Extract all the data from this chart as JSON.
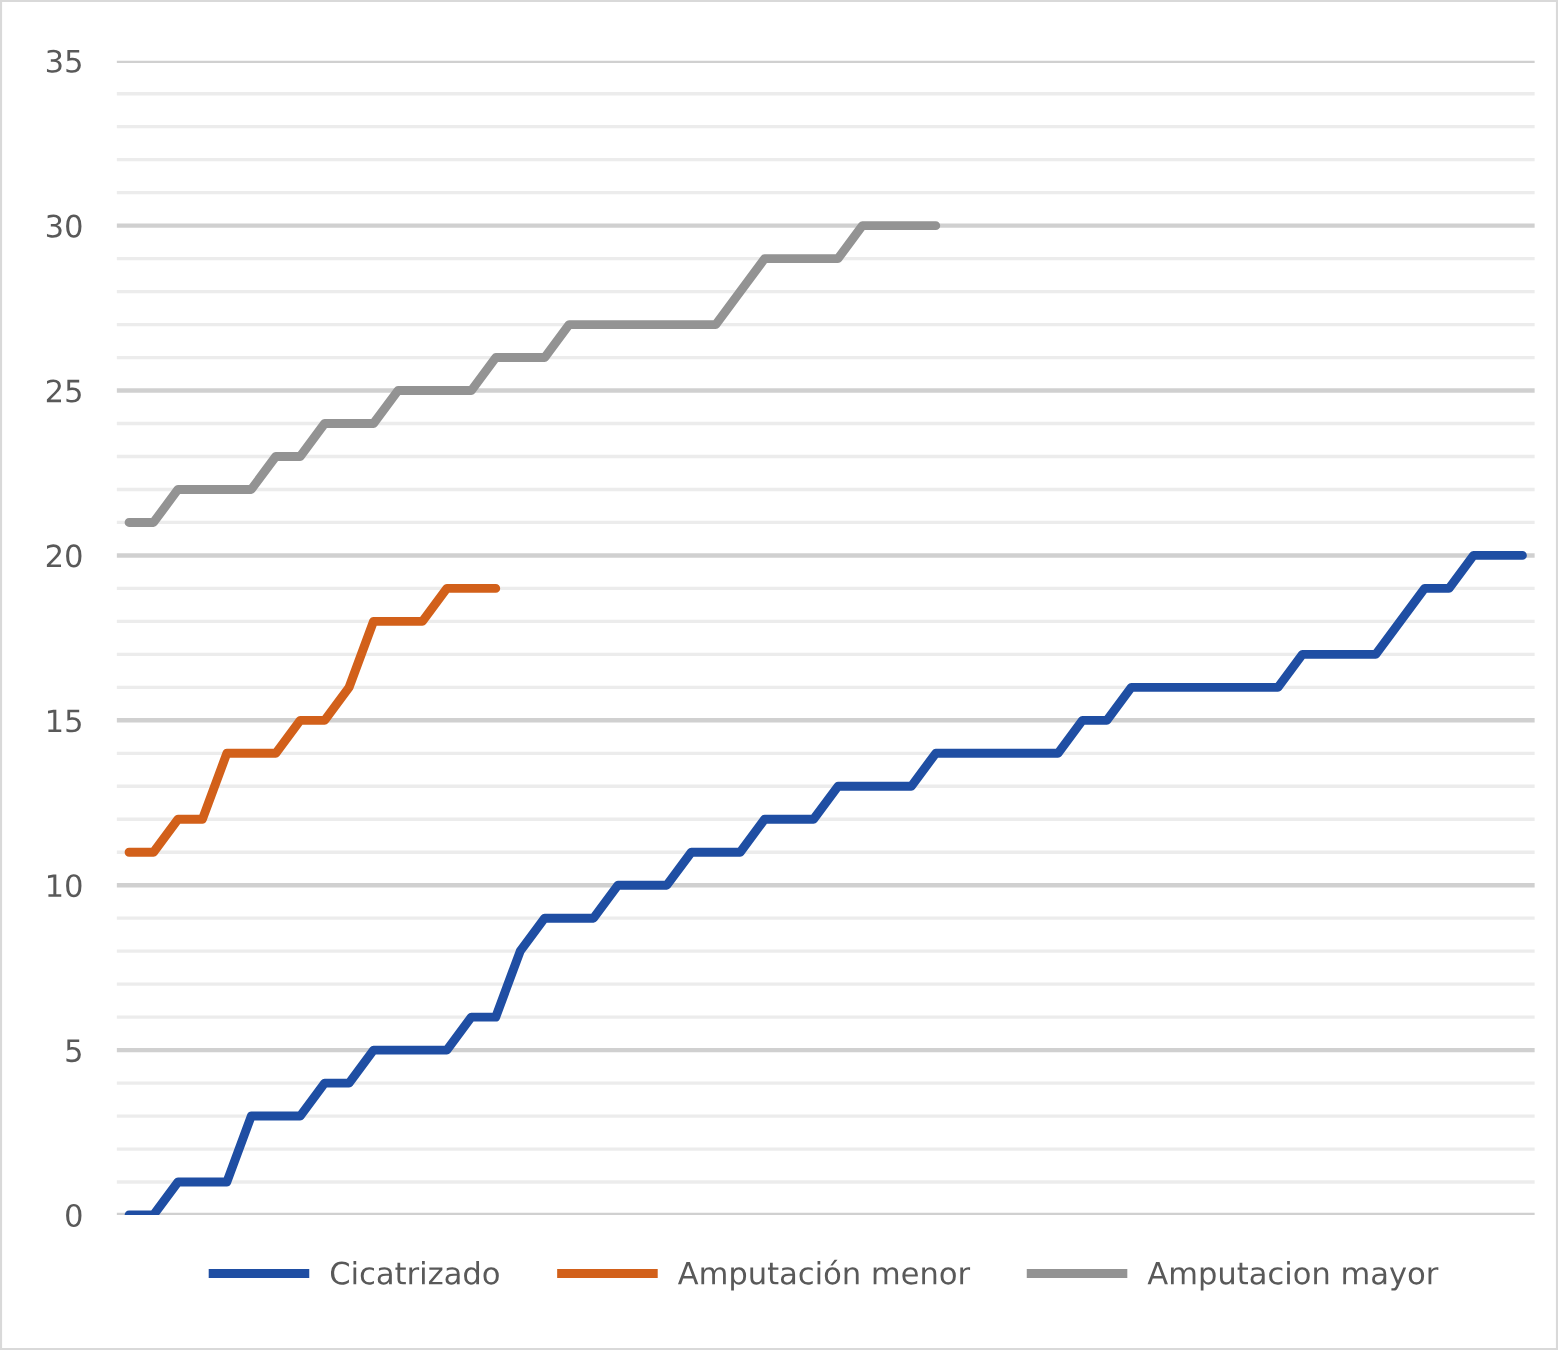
{
  "chart_data": {
    "type": "line",
    "categories": [
      null,
      null,
      null,
      null,
      null,
      null,
      null,
      null,
      null,
      null,
      null,
      null,
      null,
      null,
      null,
      null,
      null,
      null,
      null,
      null,
      null,
      null,
      null,
      null,
      null,
      null,
      null,
      null,
      null,
      null,
      null,
      null,
      null,
      null,
      null,
      null,
      null,
      null,
      null,
      null,
      null,
      null,
      null,
      null,
      null,
      null,
      null,
      null,
      null,
      null,
      null,
      null,
      null,
      null,
      null,
      null,
      null,
      null
    ],
    "series": [
      {
        "name": "Cicatrizado",
        "color": "#1f4ea3",
        "values": [
          0,
          0,
          1,
          1,
          1,
          3,
          3,
          3,
          4,
          4,
          5,
          5,
          5,
          5,
          6,
          6,
          8,
          9,
          9,
          9,
          10,
          10,
          10,
          11,
          11,
          11,
          12,
          12,
          12,
          13,
          13,
          13,
          13,
          14,
          14,
          14,
          14,
          14,
          14,
          15,
          15,
          16,
          16,
          16,
          16,
          16,
          16,
          16,
          17,
          17,
          17,
          17,
          18,
          19,
          19,
          20,
          20,
          20
        ]
      },
      {
        "name": "Amputación menor",
        "color": "#d2601a",
        "values": [
          11,
          11,
          12,
          12,
          14,
          14,
          14,
          15,
          15,
          16,
          18,
          18,
          18,
          19,
          19,
          19,
          null,
          null,
          null,
          null,
          null,
          null,
          null,
          null,
          null,
          null,
          null,
          null,
          null,
          null,
          null,
          null,
          null,
          null,
          null,
          null,
          null,
          null,
          null,
          null,
          null,
          null,
          null,
          null,
          null,
          null,
          null,
          null,
          null,
          null,
          null,
          null,
          null,
          null,
          null,
          null,
          null,
          null
        ]
      },
      {
        "name": "Amputacion mayor",
        "color": "#939393",
        "values": [
          21,
          21,
          22,
          22,
          22,
          22,
          23,
          23,
          24,
          24,
          24,
          25,
          25,
          25,
          25,
          26,
          26,
          26,
          27,
          27,
          27,
          27,
          27,
          27,
          27,
          28,
          29,
          29,
          29,
          29,
          30,
          30,
          30,
          30,
          null,
          null,
          null,
          null,
          null,
          null,
          null,
          null,
          null,
          null,
          null,
          null,
          null,
          null,
          null,
          null,
          null,
          null,
          null,
          null,
          null,
          null,
          null,
          null
        ]
      }
    ],
    "ylim": [
      0,
      35
    ],
    "yticks": [
      0,
      {
        "value": 1,
        "label": null
      },
      {
        "value": 2,
        "label": null
      },
      {
        "value": 3,
        "label": null
      },
      {
        "value": 4,
        "label": null
      },
      5,
      {
        "value": 6,
        "label": null
      },
      {
        "value": 7,
        "label": null
      },
      {
        "value": 8,
        "label": null
      },
      {
        "value": 9,
        "label": null
      },
      10,
      {
        "value": 11,
        "label": null
      },
      {
        "value": 12,
        "label": null
      },
      {
        "value": 13,
        "label": null
      },
      {
        "value": 14,
        "label": null
      },
      15,
      {
        "value": 16,
        "label": null
      },
      {
        "value": 17,
        "label": null
      },
      {
        "value": 18,
        "label": null
      },
      {
        "value": 19,
        "label": null
      },
      20,
      {
        "value": 21,
        "label": null
      },
      {
        "value": 22,
        "label": null
      },
      {
        "value": 23,
        "label": null
      },
      {
        "value": 24,
        "label": null
      },
      25,
      {
        "value": 26,
        "label": null
      },
      {
        "value": 27,
        "label": null
      },
      {
        "value": 28,
        "label": null
      },
      {
        "value": 29,
        "label": null
      },
      30,
      {
        "value": 31,
        "label": null
      },
      {
        "value": 32,
        "label": null
      },
      {
        "value": 33,
        "label": null
      },
      {
        "value": 34,
        "label": null
      },
      35
    ],
    "grid": "y",
    "legend": "bottom",
    "marker": "none",
    "line_style": "solid"
  }
}
